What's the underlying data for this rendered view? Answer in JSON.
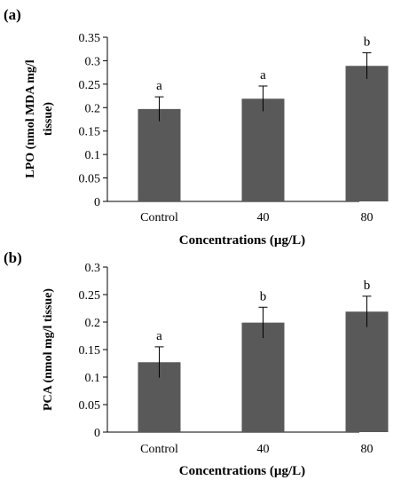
{
  "chart_data": [
    {
      "type": "bar",
      "panel_label": "(a)",
      "categories": [
        "Control",
        "40",
        "80"
      ],
      "values": [
        0.197,
        0.219,
        0.289
      ],
      "errors": [
        0.026,
        0.027,
        0.028
      ],
      "significance": [
        "a",
        "a",
        "b"
      ],
      "ylabel_lines": [
        "LPO (nmol MDA mg/l",
        "tissue)"
      ],
      "xlabel": "Concentrations (µg/L)",
      "ylim": [
        0,
        0.35
      ],
      "yticks": [
        0,
        0.05,
        0.1,
        0.15,
        0.2,
        0.25,
        0.3,
        0.35
      ],
      "ytick_labels": [
        "0",
        "0.05",
        "0.1",
        "0.15",
        "0.2",
        "0.25",
        "0.3",
        "0.35"
      ],
      "bar_color": "#595959",
      "grid": false,
      "legend": "none"
    },
    {
      "type": "bar",
      "panel_label": "(b)",
      "categories": [
        "Control",
        "40",
        "80"
      ],
      "values": [
        0.127,
        0.199,
        0.219
      ],
      "errors": [
        0.028,
        0.028,
        0.028
      ],
      "significance": [
        "a",
        "b",
        "b"
      ],
      "ylabel_lines": [
        "PCA (nmol mg/l tissue)"
      ],
      "xlabel": "Concentrations (µg/L)",
      "ylim": [
        0,
        0.3
      ],
      "yticks": [
        0,
        0.05,
        0.1,
        0.15,
        0.2,
        0.25,
        0.3
      ],
      "ytick_labels": [
        "0",
        "0.05",
        "0.1",
        "0.15",
        "0.2",
        "0.25",
        "0.3"
      ],
      "bar_color": "#595959",
      "grid": false,
      "legend": "none"
    }
  ]
}
